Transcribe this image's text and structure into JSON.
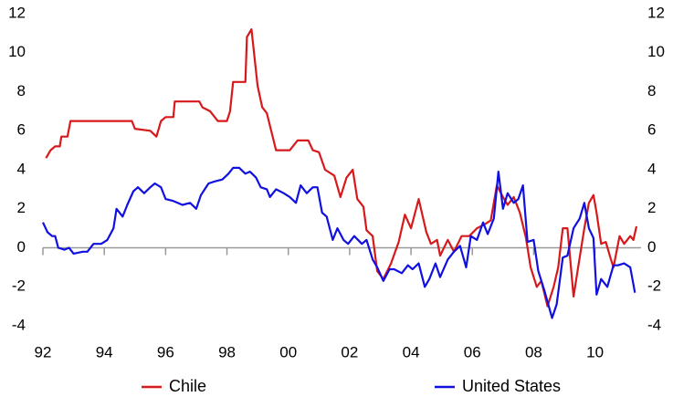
{
  "chart_data": {
    "type": "line",
    "xlim": [
      1992,
      2011.5
    ],
    "xticks": [
      {
        "value": 1992,
        "label": "92"
      },
      {
        "value": 1994,
        "label": "94"
      },
      {
        "value": 1996,
        "label": "96"
      },
      {
        "value": 1998,
        "label": "98"
      },
      {
        "value": 2000,
        "label": "00"
      },
      {
        "value": 2002,
        "label": "02"
      },
      {
        "value": 2004,
        "label": "04"
      },
      {
        "value": 2006,
        "label": "06"
      },
      {
        "value": 2008,
        "label": "08"
      },
      {
        "value": 2010,
        "label": "10"
      }
    ],
    "ylim": [
      -4,
      12
    ],
    "yticks": [
      -4,
      -2,
      0,
      2,
      4,
      6,
      8,
      10,
      12
    ],
    "y2lim": [
      -4,
      12
    ],
    "y2ticks": [
      -4,
      -2,
      0,
      2,
      4,
      6,
      8,
      10,
      12
    ],
    "series": [
      {
        "name": "Chile",
        "color": "#d7191c",
        "x": [
          1992.1,
          1992.25,
          1992.4,
          1992.55,
          1992.6,
          1992.8,
          1992.9,
          1994.9,
          1995.0,
          1995.5,
          1995.7,
          1995.85,
          1996.0,
          1996.25,
          1996.3,
          1997.1,
          1997.2,
          1997.45,
          1997.7,
          1998.0,
          1998.1,
          1998.2,
          1998.6,
          1998.65,
          1998.8,
          1999.0,
          1999.15,
          1999.3,
          1999.6,
          2000.05,
          2000.3,
          2000.65,
          2000.8,
          2001.0,
          2001.2,
          2001.5,
          2001.7,
          2001.9,
          2002.1,
          2002.25,
          2002.45,
          2002.55,
          2002.75,
          2002.9,
          2003.1,
          2003.35,
          2003.6,
          2003.8,
          2004.0,
          2004.25,
          2004.5,
          2004.65,
          2004.85,
          2004.95,
          2005.2,
          2005.4,
          2005.65,
          2005.9,
          2006.15,
          2006.4,
          2006.6,
          2006.8,
          2007.0,
          2007.15,
          2007.35,
          2007.55,
          2007.75,
          2007.9,
          2008.1,
          2008.25,
          2008.45,
          2008.65,
          2008.8,
          2008.95,
          2009.1,
          2009.3,
          2009.45,
          2009.65,
          2009.8,
          2009.95,
          2010.05,
          2010.2,
          2010.35,
          2010.5,
          2010.6,
          2010.8,
          2010.95,
          2011.15,
          2011.25,
          2011.35
        ],
        "values": [
          4.6,
          5.0,
          5.2,
          5.2,
          5.7,
          5.7,
          6.5,
          6.5,
          6.1,
          6.0,
          5.7,
          6.5,
          6.7,
          6.7,
          7.5,
          7.5,
          7.2,
          7.0,
          6.5,
          6.5,
          7.0,
          8.5,
          8.5,
          10.8,
          11.2,
          8.3,
          7.2,
          6.9,
          5.0,
          5.0,
          5.5,
          5.5,
          5.0,
          4.9,
          4.0,
          3.7,
          2.6,
          3.6,
          4.0,
          2.5,
          2.1,
          0.9,
          0.6,
          -1.2,
          -1.6,
          -0.8,
          0.3,
          1.7,
          1.0,
          2.5,
          0.8,
          0.2,
          0.4,
          -0.4,
          0.4,
          -0.2,
          0.6,
          0.6,
          1.0,
          1.2,
          1.4,
          3.2,
          2.6,
          2.2,
          2.6,
          1.8,
          0.5,
          -1.0,
          -2.0,
          -1.7,
          -3.0,
          -2.0,
          -1.0,
          1.0,
          1.0,
          -2.5,
          -1.0,
          1.0,
          2.3,
          2.7,
          1.8,
          0.2,
          0.3,
          -0.5,
          -1.0,
          0.6,
          0.2,
          0.6,
          0.4,
          1.1
        ]
      },
      {
        "name": "United States",
        "color": "#1010e0",
        "x": [
          1992.0,
          1992.15,
          1992.3,
          1992.4,
          1992.5,
          1992.7,
          1992.85,
          1993.0,
          1993.3,
          1993.45,
          1993.65,
          1993.9,
          1994.1,
          1994.3,
          1994.4,
          1994.6,
          1994.75,
          1994.95,
          1995.1,
          1995.3,
          1995.5,
          1995.65,
          1995.85,
          1996.0,
          1996.25,
          1996.55,
          1996.8,
          1997.0,
          1997.15,
          1997.4,
          1997.6,
          1997.85,
          1998.05,
          1998.2,
          1998.4,
          1998.6,
          1998.75,
          1998.95,
          1999.1,
          1999.3,
          1999.4,
          1999.6,
          1999.85,
          2000.05,
          2000.25,
          2000.4,
          2000.6,
          2000.8,
          2000.95,
          2001.1,
          2001.25,
          2001.45,
          2001.6,
          2001.8,
          2001.95,
          2002.15,
          2002.4,
          2002.55,
          2002.75,
          2002.9,
          2003.1,
          2003.3,
          2003.45,
          2003.7,
          2003.9,
          2004.05,
          2004.25,
          2004.45,
          2004.6,
          2004.8,
          2004.95,
          2005.2,
          2005.4,
          2005.6,
          2005.8,
          2005.95,
          2006.15,
          2006.35,
          2006.5,
          2006.7,
          2006.85,
          2007.0,
          2007.15,
          2007.35,
          2007.5,
          2007.65,
          2007.8,
          2008.0,
          2008.15,
          2008.35,
          2008.6,
          2008.75,
          2008.95,
          2009.1,
          2009.3,
          2009.5,
          2009.65,
          2009.8,
          2009.95,
          2010.05,
          2010.2,
          2010.4,
          2010.6,
          2010.75,
          2010.95,
          2011.15,
          2011.3
        ],
        "values": [
          1.3,
          0.8,
          0.6,
          0.6,
          0.0,
          -0.1,
          0.0,
          -0.3,
          -0.2,
          -0.2,
          0.2,
          0.2,
          0.4,
          1.0,
          2.0,
          1.6,
          2.2,
          2.9,
          3.1,
          2.8,
          3.1,
          3.3,
          3.1,
          2.5,
          2.4,
          2.2,
          2.3,
          2.0,
          2.7,
          3.3,
          3.4,
          3.5,
          3.8,
          4.1,
          4.1,
          3.8,
          3.9,
          3.6,
          3.1,
          3.0,
          2.6,
          3.0,
          2.8,
          2.6,
          2.3,
          3.2,
          2.8,
          3.1,
          3.1,
          1.8,
          1.6,
          0.4,
          1.0,
          0.4,
          0.2,
          0.6,
          0.2,
          0.4,
          -0.6,
          -1.0,
          -1.7,
          -1.1,
          -1.1,
          -1.3,
          -0.9,
          -1.1,
          -0.8,
          -2.0,
          -1.6,
          -0.8,
          -1.5,
          -0.6,
          -0.2,
          0.1,
          -1.0,
          0.6,
          0.4,
          1.3,
          0.7,
          1.5,
          3.9,
          2.0,
          2.8,
          2.3,
          2.5,
          3.2,
          0.3,
          0.4,
          -1.2,
          -2.2,
          -3.6,
          -2.9,
          -0.5,
          -0.4,
          1.0,
          1.5,
          2.3,
          1.0,
          0.5,
          -2.4,
          -1.6,
          -2.0,
          -0.9,
          -0.9,
          -0.8,
          -1.0,
          -2.3
        ]
      }
    ]
  }
}
